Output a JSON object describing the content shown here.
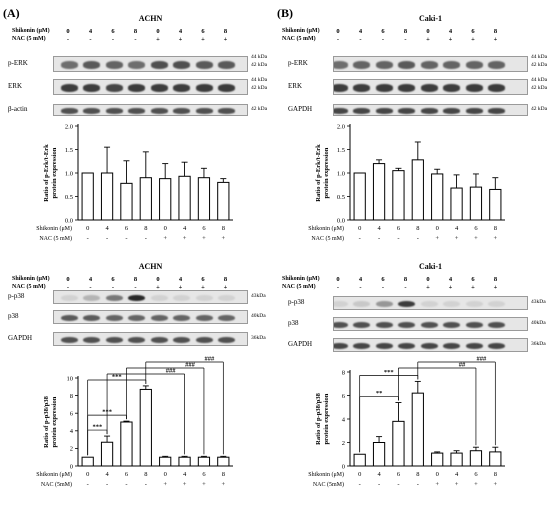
{
  "panels": {
    "A": {
      "letter": "(A)",
      "cell_line": "ACHN"
    },
    "B": {
      "letter": "(B)",
      "cell_line": "Caki-1"
    }
  },
  "blot_headers": {
    "shikonin_label": "Shikonin (μM)",
    "nac_label": "NAC (5 mM)",
    "shikonin_values": [
      "0",
      "4",
      "6",
      "8",
      "0",
      "4",
      "6",
      "8"
    ],
    "nac_values": [
      "-",
      "-",
      "-",
      "-",
      "+",
      "+",
      "+",
      "+"
    ]
  },
  "axis_rows": {
    "shikonin": "Shikonin (μM)",
    "nac_a": "NAC (5 mM)",
    "nac_b": "NAC (5mM)"
  },
  "blot_labels": {
    "perk": "p-ERK",
    "erk": "ERK",
    "bactin": "β-actin",
    "gapdh": "GAPDH",
    "pp38": "p-p38",
    "p38": "p38"
  },
  "kda_labels": {
    "k44": "44 kDa",
    "k42": "42 kDa",
    "k43": "43kDa",
    "k40": "40kDa",
    "k36": "36kDa"
  },
  "blots": {
    "A_top": [
      {
        "intensity": [
          0.55,
          0.65,
          0.6,
          0.55,
          0.7,
          0.7,
          0.65,
          0.65
        ]
      },
      {
        "intensity": [
          0.8,
          0.8,
          0.75,
          0.8,
          0.8,
          0.8,
          0.8,
          0.8
        ]
      },
      {
        "intensity": [
          0.7,
          0.7,
          0.7,
          0.7,
          0.7,
          0.7,
          0.7,
          0.7
        ]
      }
    ],
    "B_top": [
      {
        "intensity": [
          0.55,
          0.6,
          0.6,
          0.65,
          0.6,
          0.6,
          0.6,
          0.6
        ]
      },
      {
        "intensity": [
          0.8,
          0.8,
          0.8,
          0.8,
          0.8,
          0.8,
          0.8,
          0.8
        ]
      },
      {
        "intensity": [
          0.75,
          0.75,
          0.75,
          0.75,
          0.75,
          0.75,
          0.75,
          0.75
        ]
      }
    ],
    "A_bottom": [
      {
        "intensity": [
          0.05,
          0.2,
          0.5,
          0.9,
          0.05,
          0.05,
          0.05,
          0.05
        ]
      },
      {
        "intensity": [
          0.65,
          0.65,
          0.6,
          0.6,
          0.6,
          0.6,
          0.6,
          0.6
        ]
      },
      {
        "intensity": [
          0.7,
          0.7,
          0.7,
          0.7,
          0.7,
          0.7,
          0.7,
          0.7
        ]
      }
    ],
    "B_bottom": [
      {
        "intensity": [
          0.05,
          0.1,
          0.35,
          0.8,
          0.05,
          0.05,
          0.05,
          0.05
        ]
      },
      {
        "intensity": [
          0.7,
          0.7,
          0.7,
          0.7,
          0.7,
          0.7,
          0.7,
          0.7
        ]
      },
      {
        "intensity": [
          0.75,
          0.75,
          0.75,
          0.75,
          0.75,
          0.75,
          0.75,
          0.75
        ]
      }
    ]
  },
  "chart_data": [
    {
      "id": "A_perk",
      "type": "bar",
      "categories": [
        "0",
        "4",
        "6",
        "8",
        "0",
        "4",
        "6",
        "8"
      ],
      "values": [
        1.0,
        1.0,
        0.78,
        0.9,
        0.88,
        0.93,
        0.9,
        0.8
      ],
      "errors": [
        0.0,
        0.55,
        0.48,
        0.55,
        0.32,
        0.3,
        0.2,
        0.08
      ],
      "ylabel": "Ratio of p-Erk/t-Erk protein expression",
      "ylim": [
        0,
        2.0
      ],
      "yticks": [
        "0.0",
        "0.5",
        "1.0",
        "1.5",
        "2.0"
      ],
      "row_labels": {
        "shikonin": "Shikonin (μM)",
        "nac": "NAC (5 mM)"
      },
      "nac_values": [
        "-",
        "-",
        "-",
        "-",
        "+",
        "+",
        "+",
        "+"
      ],
      "significance": []
    },
    {
      "id": "B_perk",
      "type": "bar",
      "categories": [
        "0",
        "4",
        "6",
        "8",
        "0",
        "4",
        "6",
        "8"
      ],
      "values": [
        1.0,
        1.2,
        1.05,
        1.28,
        0.98,
        0.68,
        0.7,
        0.65
      ],
      "errors": [
        0.0,
        0.08,
        0.05,
        0.38,
        0.1,
        0.28,
        0.28,
        0.25
      ],
      "ylabel": "Ratio of p-Erk/t-Erk protein expression",
      "ylim": [
        0,
        2.0
      ],
      "yticks": [
        "0.0",
        "0.5",
        "1.0",
        "1.5",
        "2.0"
      ],
      "row_labels": {
        "shikonin": "Shikonin (μM)",
        "nac": "NAC (5 mM)"
      },
      "nac_values": [
        "-",
        "-",
        "-",
        "-",
        "+",
        "+",
        "+",
        "+"
      ],
      "significance": []
    },
    {
      "id": "A_pp38",
      "type": "bar",
      "categories": [
        "0",
        "4",
        "6",
        "8",
        "0",
        "4",
        "6",
        "8"
      ],
      "values": [
        1.0,
        2.7,
        5.0,
        8.7,
        1.0,
        1.0,
        1.0,
        1.0
      ],
      "errors": [
        0.0,
        0.7,
        0.1,
        0.4,
        0.1,
        0.1,
        0.1,
        0.1
      ],
      "ylabel": "Ratio of p-p38/p38 protein expression",
      "ylim": [
        0,
        10
      ],
      "yticks": [
        "0",
        "2",
        "4",
        "6",
        "8",
        "10"
      ],
      "row_labels": {
        "shikonin": "Shikonin (μM)",
        "nac": "NAC (5mM)"
      },
      "nac_values": [
        "-",
        "-",
        "-",
        "-",
        "+",
        "+",
        "+",
        "+"
      ],
      "significance": [
        {
          "from": 0,
          "to": 1,
          "label": "***"
        },
        {
          "from": 0,
          "to": 2,
          "label": "***"
        },
        {
          "from": 0,
          "to": 3,
          "label": "***"
        },
        {
          "from": 1,
          "to": 5,
          "label": "###"
        },
        {
          "from": 2,
          "to": 6,
          "label": "###"
        },
        {
          "from": 3,
          "to": 7,
          "label": "###"
        }
      ]
    },
    {
      "id": "B_pp38",
      "type": "bar",
      "categories": [
        "0",
        "4",
        "6",
        "8",
        "0",
        "4",
        "6",
        "8"
      ],
      "values": [
        1.0,
        2.0,
        3.8,
        6.2,
        1.1,
        1.1,
        1.3,
        1.2
      ],
      "errors": [
        0.0,
        0.5,
        1.6,
        1.0,
        0.1,
        0.2,
        0.3,
        0.4
      ],
      "ylabel": "Ratio of p-p38/p38 protein expression",
      "ylim": [
        0,
        8
      ],
      "yticks": [
        "0",
        "2",
        "4",
        "6",
        "8"
      ],
      "row_labels": {
        "shikonin": "Shikonin (μM)",
        "nac": "NAC (5mM)"
      },
      "nac_values": [
        "-",
        "-",
        "-",
        "-",
        "+",
        "+",
        "+",
        "+"
      ],
      "significance": [
        {
          "from": 0,
          "to": 2,
          "label": "**"
        },
        {
          "from": 0,
          "to": 3,
          "label": "***"
        },
        {
          "from": 2,
          "to": 6,
          "label": "##"
        },
        {
          "from": 3,
          "to": 7,
          "label": "###"
        }
      ]
    }
  ]
}
